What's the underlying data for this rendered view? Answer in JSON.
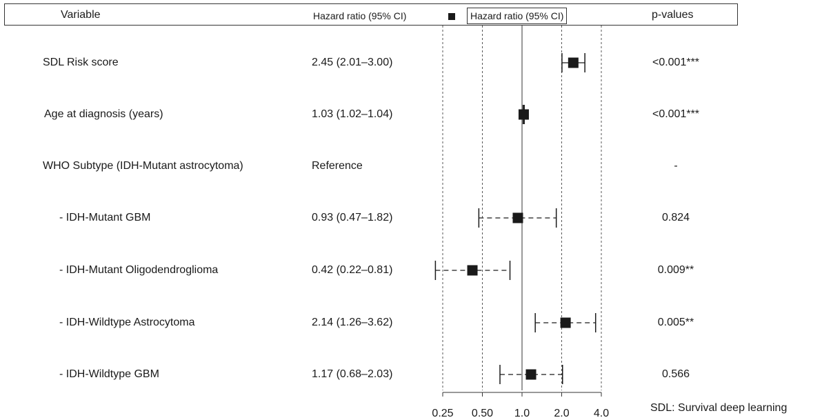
{
  "header": {
    "variable": "Variable",
    "hazard_ratio": "Hazard ratio (95% CI)",
    "legend_label": "Hazard ratio (95% CI)",
    "p_values": "p-values"
  },
  "rows": [
    {
      "label": "SDL Risk score",
      "hr_text": "2.45 (2.01–3.00)",
      "p": "<0.001***"
    },
    {
      "label": "Age at diagnosis (years)",
      "hr_text": "1.03 (1.02–1.04)",
      "p": "<0.001***"
    },
    {
      "label": "WHO Subtype (IDH-Mutant astrocytoma)",
      "hr_text": "Reference",
      "p": "-"
    },
    {
      "label": "  - IDH-Mutant GBM",
      "hr_text": "0.93 (0.47–1.82)",
      "p": "0.824"
    },
    {
      "label": "  - IDH-Mutant Oligodendroglioma",
      "hr_text": "0.42 (0.22–0.81)",
      "p": "0.009**"
    },
    {
      "label": "  - IDH-Wildtype Astrocytoma",
      "hr_text": "2.14 (1.26–3.62)",
      "p": "0.005**"
    },
    {
      "label": "  - IDH-Wildtype GBM",
      "hr_text": "1.17 (0.68–2.03)",
      "p": "0.566"
    }
  ],
  "footnote": "SDL: Survival deep learning",
  "chart_data": {
    "type": "scatter",
    "x_scale": "log2",
    "xlim": [
      0.21,
      4.0
    ],
    "reference_line": 1.0,
    "x_tick_labels": [
      "0.25",
      "0.50",
      "1.0",
      "2.0",
      "4.0"
    ],
    "x_ticks": [
      0.25,
      0.5,
      1.0,
      2.0,
      4.0
    ],
    "grid": "vertical dashed at ticks",
    "series": [
      {
        "points": [
          {
            "row": 0,
            "hr": 2.45,
            "lo": 2.01,
            "hi": 3.0,
            "line": "solid"
          },
          {
            "row": 1,
            "hr": 1.03,
            "lo": 1.02,
            "hi": 1.04,
            "line": "solid"
          },
          {
            "row": 3,
            "hr": 0.93,
            "lo": 0.47,
            "hi": 1.82,
            "line": "dashed"
          },
          {
            "row": 4,
            "hr": 0.42,
            "lo": 0.22,
            "hi": 0.81,
            "line": "dashed"
          },
          {
            "row": 5,
            "hr": 2.14,
            "lo": 1.26,
            "hi": 3.62,
            "line": "dashed"
          },
          {
            "row": 6,
            "hr": 1.17,
            "lo": 0.68,
            "hi": 2.03,
            "line": "dashed"
          }
        ]
      }
    ],
    "marker_color": "#1a1a1a"
  }
}
